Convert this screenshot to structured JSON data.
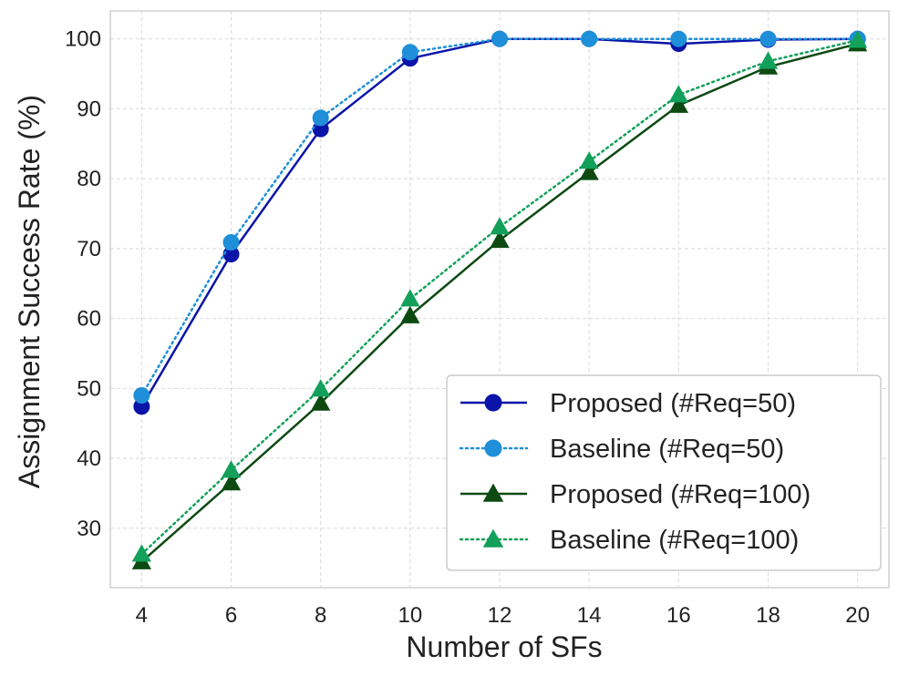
{
  "chart_data": {
    "type": "line",
    "title": "",
    "xlabel": "Number of SFs",
    "ylabel": "Assignment Success Rate (%)",
    "x": [
      4,
      6,
      8,
      10,
      12,
      14,
      16,
      18,
      20
    ],
    "xticks": [
      "4",
      "6",
      "8",
      "10",
      "12",
      "14",
      "16",
      "18",
      "20"
    ],
    "yticks": [
      "30",
      "40",
      "50",
      "60",
      "70",
      "80",
      "90",
      "100"
    ],
    "xlim": [
      3.3,
      20.7
    ],
    "ylim": [
      21.5,
      104
    ],
    "grid": true,
    "legend_position": "lower-right",
    "series": [
      {
        "name": "Proposed (#Req=50)",
        "color": "#0a14a8",
        "marker": "circle",
        "linestyle": "solid",
        "values": [
          47.4,
          69.2,
          87.1,
          97.2,
          100,
          100,
          99.3,
          99.9,
          100
        ]
      },
      {
        "name": "Baseline (#Req=50)",
        "color": "#1e8fd8",
        "marker": "circle",
        "linestyle": "dotted",
        "values": [
          49.0,
          70.9,
          88.7,
          98.1,
          100,
          100,
          100,
          100,
          100
        ]
      },
      {
        "name": "Proposed (#Req=100)",
        "color": "#0d4a12",
        "marker": "triangle",
        "linestyle": "solid",
        "values": [
          25.2,
          36.5,
          47.9,
          60.4,
          71.2,
          80.9,
          90.5,
          96.0,
          99.3
        ]
      },
      {
        "name": "Baseline (#Req=100)",
        "color": "#12a05a",
        "marker": "triangle",
        "linestyle": "dotted",
        "values": [
          26.3,
          38.3,
          49.9,
          62.8,
          73.1,
          82.5,
          92.0,
          96.8,
          99.8
        ]
      }
    ]
  }
}
